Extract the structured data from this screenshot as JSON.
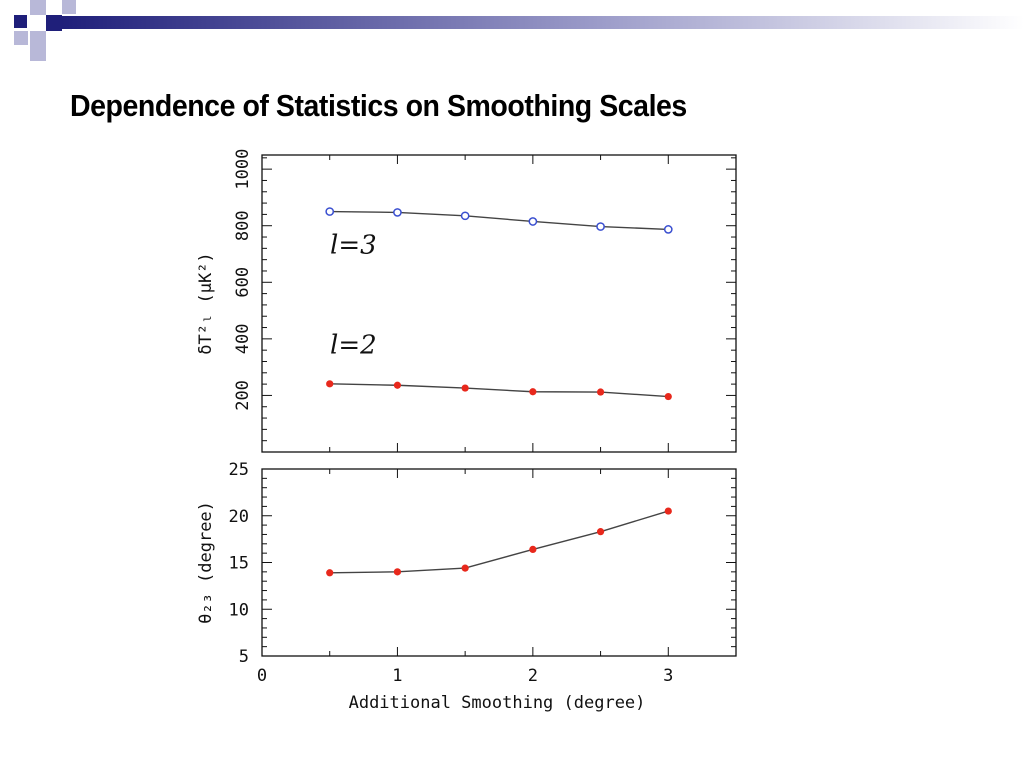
{
  "slide": {
    "title": "Dependence of Statistics on Smoothing Scales"
  },
  "colors": {
    "decor_navy": "#1f1f7a",
    "decor_light": "#b8b8d8",
    "series_red": "#e8281c",
    "series_blue": "#3a4fd0",
    "line": "#444444"
  },
  "chart_data": [
    {
      "type": "line",
      "panel": "top",
      "ylabel": "δT²ₗ (μK²)",
      "xlim": [
        0,
        3.5
      ],
      "ylim": [
        0,
        1050
      ],
      "yticks": [
        200,
        400,
        600,
        800,
        1000
      ],
      "annotations": [
        "l=3",
        "l=2"
      ],
      "grid": false,
      "series": [
        {
          "name": "l=3",
          "marker": "open-circle",
          "x": [
            0.5,
            1.0,
            1.5,
            2.0,
            2.5,
            3.0
          ],
          "y": [
            850,
            847,
            835,
            815,
            797,
            787
          ]
        },
        {
          "name": "l=2",
          "marker": "filled-circle",
          "x": [
            0.5,
            1.0,
            1.5,
            2.0,
            2.5,
            3.0
          ],
          "y": [
            241,
            236,
            226,
            213,
            212,
            196
          ]
        }
      ]
    },
    {
      "type": "line",
      "panel": "bottom",
      "ylabel": "θ₂₃ (degree)",
      "xlabel": "Additional Smoothing (degree)",
      "xlim": [
        0,
        3.5
      ],
      "ylim": [
        5,
        25
      ],
      "xticks": [
        0,
        1,
        2,
        3
      ],
      "yticks": [
        5,
        10,
        15,
        20,
        25
      ],
      "grid": false,
      "series": [
        {
          "marker": "filled-circle",
          "x": [
            0.5,
            1.0,
            1.5,
            2.0,
            2.5,
            3.0
          ],
          "y": [
            13.9,
            14.0,
            14.4,
            16.4,
            18.3,
            20.5
          ]
        }
      ]
    }
  ]
}
